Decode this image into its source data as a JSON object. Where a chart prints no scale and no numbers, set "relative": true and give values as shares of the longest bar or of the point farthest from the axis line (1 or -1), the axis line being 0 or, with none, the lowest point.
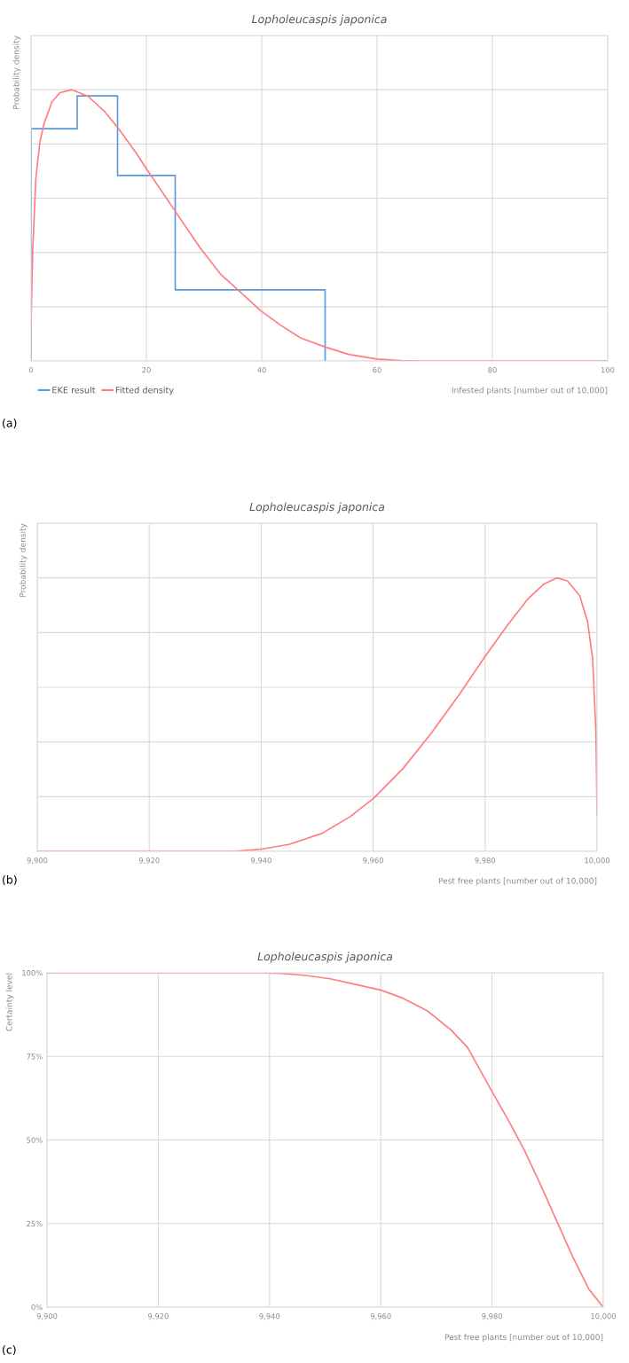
{
  "chart_data": [
    {
      "type": "line",
      "title": "Lopholeucaspis japonica",
      "xlabel": "Infested plants [number out of 10,000]",
      "ylabel": "Probability density",
      "relative": true,
      "xlim": [
        0,
        100
      ],
      "xticks": [
        0,
        20,
        40,
        60,
        80,
        100
      ],
      "grid": true,
      "tick_labels": "x",
      "legend": "bottom left",
      "annotations": [
        "(a)"
      ],
      "series": [
        {
          "name": "EKE result",
          "type": "step",
          "color": "#5b9bd5",
          "x": [
            0,
            0,
            8,
            15,
            25,
            51
          ],
          "values": [
            0,
            0.856,
            0.977,
            0.684,
            0.262,
            0
          ]
        },
        {
          "name": "Fitted density",
          "type": "line",
          "color": "#ff7c80",
          "x": [
            0,
            0.28,
            0.83,
            1.53,
            2.23,
            3.62,
            5.01,
            7.09,
            9.87,
            12.66,
            15.02,
            18.22,
            20.31,
            24.97,
            29.35,
            32.82,
            36.3,
            39.78,
            43.25,
            46.73,
            51.04,
            55.08,
            59.94,
            64.12,
            68.29,
            100
          ],
          "values": [
            0.132,
            0.402,
            0.672,
            0.807,
            0.874,
            0.955,
            0.989,
            1.0,
            0.976,
            0.922,
            0.861,
            0.767,
            0.699,
            0.553,
            0.416,
            0.321,
            0.254,
            0.186,
            0.132,
            0.085,
            0.051,
            0.024,
            0.007,
            0.001,
            0,
            0
          ]
        }
      ]
    },
    {
      "type": "line",
      "title": "Lopholeucaspis japonica",
      "xlabel": "Pest free plants [number out of 10,000]",
      "ylabel": "Probability density",
      "relative": true,
      "xlim": [
        9900,
        10000
      ],
      "xticks": [
        {
          "value": 9900,
          "label": "9,900"
        },
        {
          "value": 9920,
          "label": "9,920"
        },
        {
          "value": 9940,
          "label": "9,940"
        },
        {
          "value": 9960,
          "label": "9,960"
        },
        {
          "value": 9980,
          "label": "9,980"
        },
        {
          "value": 10000,
          "label": "10,000"
        }
      ],
      "grid": true,
      "tick_labels": "x",
      "annotations": [
        "(b)"
      ],
      "series": [
        {
          "color": "#ff7c80",
          "x": [
            9900,
            9935.0,
            9940.1,
            9945.1,
            9950.9,
            9955.9,
            9960.1,
            9965.3,
            9970.3,
            9975.3,
            9980.0,
            9984.0,
            9987.6,
            9990.4,
            9992.8,
            9994.7,
            9996.9,
            9998.3,
            9999.2,
            9999.8,
            10000
          ],
          "values": [
            0,
            0,
            0.008,
            0.026,
            0.066,
            0.127,
            0.194,
            0.302,
            0.43,
            0.571,
            0.713,
            0.827,
            0.922,
            0.976,
            1.0,
            0.989,
            0.935,
            0.841,
            0.706,
            0.437,
            0.133
          ]
        }
      ]
    },
    {
      "type": "line",
      "title": "Lopholeucaspis japonica",
      "xlabel": "Pest free plants [number out of 10,000]",
      "ylabel": "Certainty level",
      "xlim": [
        9900,
        10000
      ],
      "xticks": [
        {
          "value": 9900,
          "label": "9,900"
        },
        {
          "value": 9920,
          "label": "9,920"
        },
        {
          "value": 9940,
          "label": "9,940"
        },
        {
          "value": 9960,
          "label": "9,960"
        },
        {
          "value": 9980,
          "label": "9,980"
        },
        {
          "value": 10000,
          "label": "10,000"
        }
      ],
      "ylim": [
        0,
        100
      ],
      "yticks": [
        {
          "value": 0,
          "label": "0%"
        },
        {
          "value": 25,
          "label": "25%"
        },
        {
          "value": 50,
          "label": "50%"
        },
        {
          "value": 75,
          "label": "75%"
        },
        {
          "value": 100,
          "label": "100%"
        }
      ],
      "grid": true,
      "annotations": [
        "(c)"
      ],
      "series": [
        {
          "color": "#ff7c80",
          "x": [
            9900,
            9937.9,
            9942.2,
            9946.6,
            9950.9,
            9955.3,
            9960.1,
            9964.0,
            9968.4,
            9972.7,
            9975.6,
            9980.0,
            9982.9,
            9985.8,
            9988.7,
            9991.6,
            9994.5,
            9997.4,
            10000
          ],
          "values": [
            100,
            100,
            99.8,
            99.2,
            98.2,
            96.6,
            94.8,
            92.4,
            88.6,
            82.8,
            77.7,
            64.5,
            56.0,
            47.0,
            36.7,
            25.9,
            15.1,
            5.4,
            0
          ]
        }
      ]
    }
  ]
}
